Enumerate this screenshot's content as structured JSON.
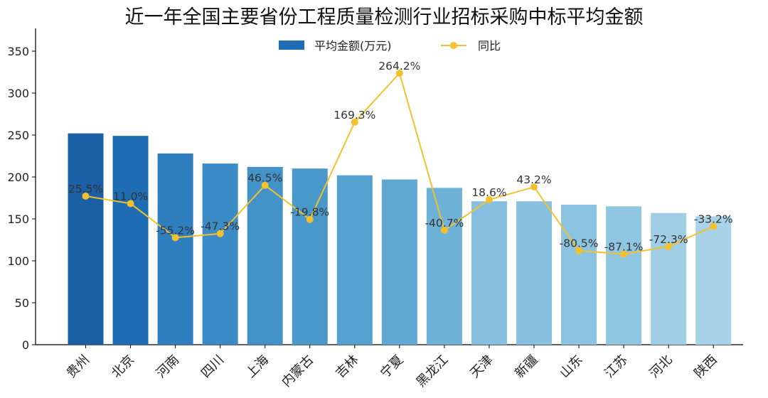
{
  "title": "近一年全国主要省份工程质量检测行业招标采购中标平均金额",
  "chart_data": {
    "type": "bar",
    "title": "近一年全国主要省份工程质量检测行业招标采购中标平均金额",
    "categories": [
      "贵州",
      "北京",
      "河南",
      "四川",
      "上海",
      "内蒙古",
      "吉林",
      "宁夏",
      "黑龙江",
      "天津",
      "新疆",
      "山东",
      "江苏",
      "河北",
      "陕西"
    ],
    "series": [
      {
        "name": "平均金额(万元)",
        "type": "bar",
        "values": [
          252,
          249,
          228,
          216,
          212,
          210,
          202,
          197,
          187,
          171,
          171,
          167,
          165,
          157,
          153
        ]
      },
      {
        "name": "同比",
        "type": "line",
        "values": [
          25.5,
          11.0,
          -55.2,
          -47.3,
          46.5,
          -19.8,
          169.3,
          264.2,
          -40.7,
          18.6,
          43.2,
          -80.5,
          -87.1,
          -72.3,
          -33.2
        ],
        "labels": [
          "25.5%",
          "11.0%",
          "-55.2%",
          "-47.3%",
          "46.5%",
          "-19.8%",
          "169.3%",
          "264.2%",
          "-40.7%",
          "18.6%",
          "43.2%",
          "-80.5%",
          "-87.1%",
          "-72.3%",
          "-33.2%"
        ]
      }
    ],
    "ylim": [
      0,
      380
    ],
    "yticks": [
      0,
      50,
      100,
      150,
      200,
      250,
      300,
      350
    ],
    "y2lim": [
      -140,
      310
    ],
    "legend": "top-center",
    "grid": false,
    "bar_colors": [
      "#1b5fa5",
      "#1e6cb4",
      "#2f7fc0",
      "#3b8bc6",
      "#4393c9",
      "#4898ca",
      "#55a2d0",
      "#5fa8d3",
      "#6fb2d8",
      "#86c0e0",
      "#88c1e0",
      "#8cc3e1",
      "#90c6e2",
      "#a0cee6",
      "#a8d2e8"
    ],
    "line_color": "#f2c12e"
  }
}
